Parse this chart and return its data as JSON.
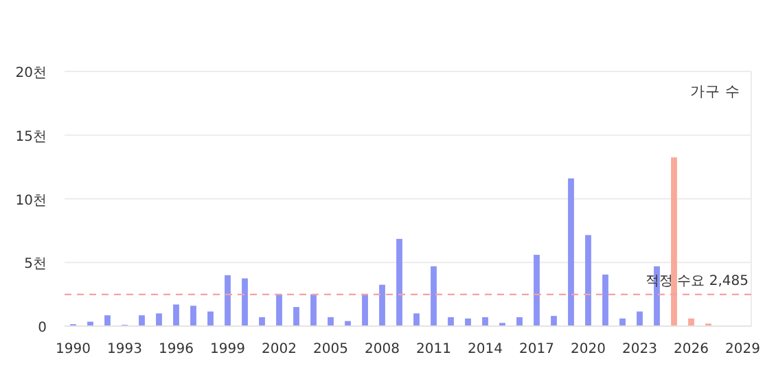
{
  "chart_data": {
    "type": "bar",
    "categories": [
      "1990",
      null,
      null,
      "1993",
      null,
      null,
      "1996",
      null,
      null,
      "1999",
      null,
      null,
      "2002",
      null,
      null,
      "2005",
      null,
      null,
      "2008",
      null,
      null,
      "2011",
      null,
      null,
      "2014",
      null,
      null,
      "2017",
      null,
      null,
      "2020",
      null,
      null,
      "2023",
      null,
      null,
      "2026",
      null,
      null,
      "2029"
    ],
    "values": [
      0.15,
      0.35,
      0.85,
      0.1,
      0.85,
      1.0,
      1.7,
      1.6,
      1.15,
      4.0,
      3.75,
      0.7,
      2.5,
      1.5,
      2.5,
      0.7,
      0.4,
      2.5,
      3.25,
      6.85,
      1.0,
      4.7,
      0.7,
      0.6,
      0.7,
      0.25,
      0.7,
      5.6,
      0.8,
      11.6,
      7.15,
      4.05,
      0.6,
      1.15,
      4.7,
      13.25,
      0.6,
      0.2,
      null,
      null
    ],
    "colors": [
      "#8c94f5",
      "#8c94f5",
      "#8c94f5",
      "#8c94f5",
      "#8c94f5",
      "#8c94f5",
      "#8c94f5",
      "#8c94f5",
      "#8c94f5",
      "#8c94f5",
      "#8c94f5",
      "#8c94f5",
      "#8c94f5",
      "#8c94f5",
      "#8c94f5",
      "#8c94f5",
      "#8c94f5",
      "#8c94f5",
      "#8c94f5",
      "#8c94f5",
      "#8c94f5",
      "#8c94f5",
      "#8c94f5",
      "#8c94f5",
      "#8c94f5",
      "#8c94f5",
      "#8c94f5",
      "#8c94f5",
      "#8c94f5",
      "#8c94f5",
      "#8c94f5",
      "#8c94f5",
      "#8c94f5",
      "#8c94f5",
      "#8c94f5",
      "#f9a99a",
      "#f9a99a",
      "#f9a99a",
      null,
      null
    ],
    "ylim": [
      0,
      20
    ],
    "yticks": [
      0,
      {
        "value": 5,
        "label": "5천"
      },
      {
        "value": 10,
        "label": "10천"
      },
      {
        "value": 15,
        "label": "15천"
      },
      {
        "value": 20,
        "label": "20천"
      }
    ],
    "grid": "y",
    "ref_lines": [
      {
        "axis": "y",
        "value": 2.485,
        "label": "적정 수요 2,485",
        "color": "#f7a1a1",
        "line_style": "dashed"
      }
    ],
    "annotations": [
      "가구 수"
    ]
  }
}
